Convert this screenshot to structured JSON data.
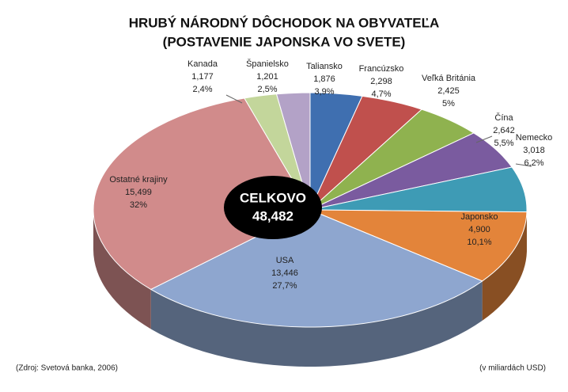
{
  "chart_data": {
    "type": "pie3d",
    "title": "HRUBÝ NÁRODNÝ DÔCHODOK NA OBYVATEĽA",
    "subtitle": "(POSTAVENIE JAPONSKA VO SVETE)",
    "categories": [
      "Taliansko",
      "Francúzsko",
      "Veľká Británia",
      "Čína",
      "Nemecko",
      "Japonsko",
      "USA",
      "Ostatné krajiny",
      "Kanada",
      "Španielsko"
    ],
    "values": [
      1876,
      2298,
      2425,
      2642,
      3018,
      4900,
      13446,
      15499,
      1177,
      1201
    ],
    "value_labels": [
      "1,876",
      "2,298",
      "2,425",
      "2,642",
      "3,018",
      "4,900",
      "13,446",
      "15,499",
      "1,177",
      "1,201"
    ],
    "percentages": [
      3.9,
      4.7,
      5,
      5.5,
      6.2,
      10.1,
      27.7,
      32,
      2.4,
      2.5
    ],
    "percentage_labels": [
      "3,9%",
      "4,7%",
      "5%",
      "5,5%",
      "6,2%",
      "10,1%",
      "27,7%",
      "32%",
      "2,4%",
      "2,5%"
    ],
    "colors": [
      "#3f6fb0",
      "#c0504d",
      "#8fb24f",
      "#7a5b9f",
      "#3e9bb5",
      "#e3843a",
      "#8ea6cf",
      "#d18b8b",
      "#c3d69b",
      "#b3a2c7"
    ],
    "total": {
      "label": "CELKOVO",
      "value": 48482,
      "value_label": "48,482"
    },
    "source": "(Zdroj: Svetová banka, 2006)",
    "unit_note": "(v miliardách USD)"
  }
}
